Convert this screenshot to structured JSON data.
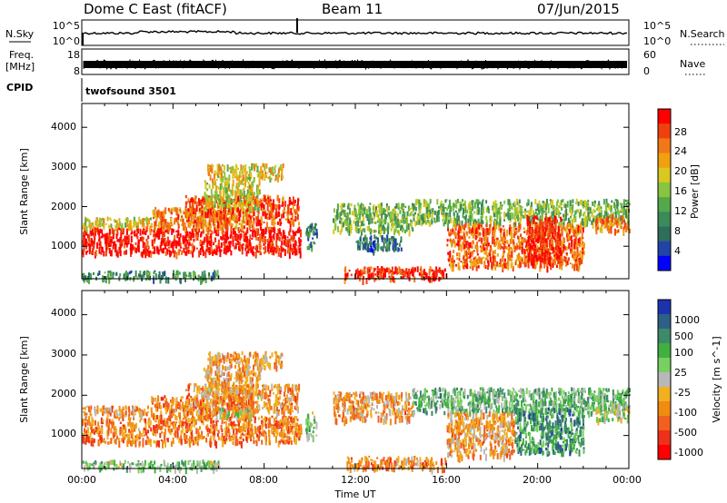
{
  "header": {
    "station": "Dome C East (fitACF)",
    "beam": "Beam 11",
    "date": "07/Jun/2015"
  },
  "nsky_panel": {
    "left_label": "N.Sky",
    "right_label": "N.Search",
    "ticks_left": [
      "10^5",
      "10^0"
    ],
    "ticks_right": [
      "10^5",
      "10^0"
    ]
  },
  "freq_panel": {
    "left_label_top": "Freq.",
    "left_label_unit": "[MHz]",
    "ticks_left": [
      "18",
      "8"
    ],
    "ticks_right": [
      "60",
      "0"
    ],
    "right_label": "Nave"
  },
  "cpid": {
    "label": "CPID",
    "value": "twofsound 3501"
  },
  "x_axis": {
    "label": "Time UT",
    "ticks": [
      "00:00",
      "04:00",
      "08:00",
      "12:00",
      "16:00",
      "20:00",
      "00:00"
    ]
  },
  "colors": {
    "power_scale": [
      "#0000ff",
      "#2244aa",
      "#2f6e59",
      "#3b8a5a",
      "#55a84a",
      "#88c440",
      "#d8c820",
      "#f0a010",
      "#f07818",
      "#f04010",
      "#ff0000"
    ],
    "velocity_scale": [
      "#ff0000",
      "#f03018",
      "#f06020",
      "#f08c10",
      "#f0b020",
      "#b8b8b8",
      "#78d060",
      "#40b040",
      "#3d8a68",
      "#2e5f86",
      "#1c33b0"
    ]
  },
  "chart_data": [
    {
      "type": "heatmap",
      "title": "",
      "xlabel": "Time UT",
      "ylabel": "Slant Range [km]",
      "xlim": [
        0,
        24
      ],
      "ylim": [
        180,
        4600
      ],
      "yticks": [
        "1000",
        "2000",
        "3000",
        "4000"
      ],
      "colorbar": {
        "label": "Power [dB]",
        "ticks": [
          "4",
          "8",
          "12",
          "16",
          "20",
          "24",
          "28"
        ],
        "range": [
          0,
          32
        ]
      },
      "regions": [
        {
          "t": [
            0.0,
            9.6
          ],
          "r": [
            850,
            1500
          ],
          "level": 0.95
        },
        {
          "t": [
            0.0,
            3.0
          ],
          "r": [
            1500,
            1750
          ],
          "level": 0.6
        },
        {
          "t": [
            3.0,
            7.5
          ],
          "r": [
            1500,
            2000
          ],
          "level": 0.75
        },
        {
          "t": [
            4.5,
            9.5
          ],
          "r": [
            1600,
            2300
          ],
          "level": 0.85
        },
        {
          "t": [
            5.3,
            7.8
          ],
          "r": [
            2000,
            2700
          ],
          "level": 0.55
        },
        {
          "t": [
            5.5,
            8.8
          ],
          "r": [
            2700,
            3100
          ],
          "level": 0.6
        },
        {
          "t": [
            9.8,
            10.3
          ],
          "r": [
            1000,
            1600
          ],
          "level": 0.3
        },
        {
          "t": [
            11.0,
            14.5
          ],
          "r": [
            1400,
            2100
          ],
          "level": 0.45
        },
        {
          "t": [
            12.0,
            14.0
          ],
          "r": [
            900,
            1300
          ],
          "level": 0.25
        },
        {
          "t": [
            11.5,
            16.0
          ],
          "r": [
            200,
            500
          ],
          "level": 0.9
        },
        {
          "t": [
            14.5,
            24.0
          ],
          "r": [
            1600,
            2200
          ],
          "level": 0.45
        },
        {
          "t": [
            16.0,
            22.0
          ],
          "r": [
            500,
            1600
          ],
          "level": 0.8
        },
        {
          "t": [
            19.5,
            21.0
          ],
          "r": [
            600,
            1800
          ],
          "level": 0.95
        },
        {
          "t": [
            22.5,
            24.0
          ],
          "r": [
            1400,
            1800
          ],
          "level": 0.75
        },
        {
          "t": [
            0.0,
            6.0
          ],
          "r": [
            200,
            400
          ],
          "level": 0.3
        }
      ]
    },
    {
      "type": "heatmap",
      "title": "",
      "xlabel": "Time UT",
      "ylabel": "Slant Range [km]",
      "xlim": [
        0,
        24
      ],
      "ylim": [
        180,
        4600
      ],
      "yticks": [
        "1000",
        "2000",
        "3000",
        "4000"
      ],
      "colorbar": {
        "label": "Velocity [m s^-1]",
        "ticks": [
          "1000",
          "500",
          "100",
          "25",
          "-25",
          "-100",
          "-500",
          "-1000"
        ]
      },
      "regions": [
        {
          "t": [
            0.0,
            9.6
          ],
          "r": [
            850,
            1500
          ],
          "level": 0.28
        },
        {
          "t": [
            0.0,
            3.0
          ],
          "r": [
            1500,
            1750
          ],
          "level": 0.35
        },
        {
          "t": [
            3.0,
            7.5
          ],
          "r": [
            1500,
            2000
          ],
          "level": 0.3
        },
        {
          "t": [
            4.5,
            9.5
          ],
          "r": [
            1600,
            2300
          ],
          "level": 0.32
        },
        {
          "t": [
            6.0,
            7.5
          ],
          "r": [
            1500,
            1700
          ],
          "level": 0.5
        },
        {
          "t": [
            5.3,
            7.8
          ],
          "r": [
            2000,
            2700
          ],
          "level": 0.38
        },
        {
          "t": [
            5.5,
            8.8
          ],
          "r": [
            2700,
            3100
          ],
          "level": 0.36
        },
        {
          "t": [
            9.8,
            10.3
          ],
          "r": [
            1000,
            1600
          ],
          "level": 0.6
        },
        {
          "t": [
            11.0,
            14.5
          ],
          "r": [
            1400,
            2100
          ],
          "level": 0.35
        },
        {
          "t": [
            11.5,
            16.0
          ],
          "r": [
            200,
            500
          ],
          "level": 0.3
        },
        {
          "t": [
            14.5,
            24.0
          ],
          "r": [
            1600,
            2200
          ],
          "level": 0.65
        },
        {
          "t": [
            16.0,
            19.0
          ],
          "r": [
            500,
            1600
          ],
          "level": 0.35
        },
        {
          "t": [
            19.0,
            22.0
          ],
          "r": [
            600,
            1700
          ],
          "level": 0.75
        },
        {
          "t": [
            22.5,
            24.0
          ],
          "r": [
            1400,
            1800
          ],
          "level": 0.55
        },
        {
          "t": [
            0.0,
            6.0
          ],
          "r": [
            200,
            400
          ],
          "level": 0.6
        }
      ]
    }
  ]
}
